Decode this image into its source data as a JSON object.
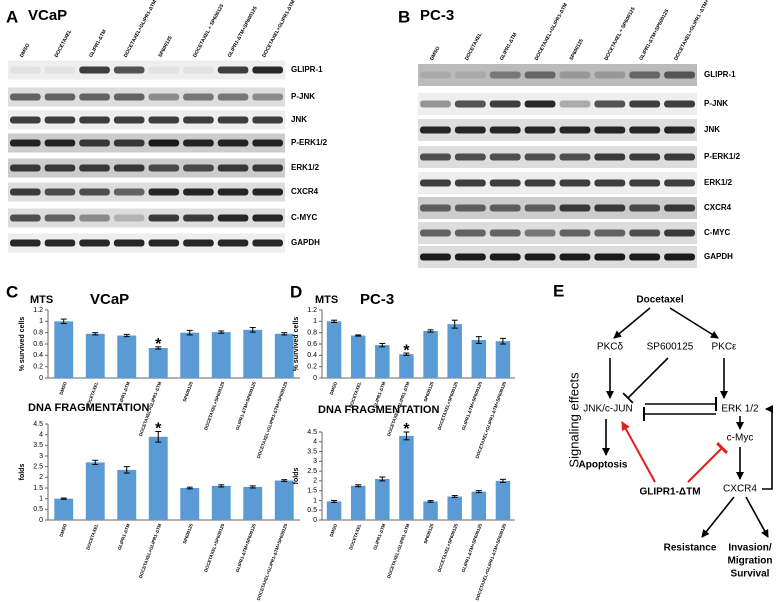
{
  "panels": [
    {
      "label": "A",
      "title": "VCaP"
    },
    {
      "label": "B",
      "title": "PC-3"
    },
    {
      "label": "C",
      "title": "VCaP"
    },
    {
      "label": "D",
      "title": "PC-3"
    },
    {
      "label": "E"
    }
  ],
  "blots": [
    {
      "lanes": [
        "DMSO",
        "DOCETAXEL",
        "GLIPR1-ΔTM",
        "DOCETAXEL+GLIPR1-ΔTM",
        "SP600125",
        "DOCETAXEL + SP600125",
        "GLIPR1-ΔTM+SP600125",
        "DOCETAXEL+GLIPR1-ΔTM+SP600125"
      ],
      "proteins": [
        "GLIPR-1",
        "P-JNK",
        "JNK",
        "P-ERK1/2",
        "ERK1/2",
        "CXCR4",
        "C-MYC",
        "GAPDH"
      ]
    },
    {
      "lanes": [
        "DMSO",
        "DOCETAXEL",
        "GLIPR1-ΔTM",
        "DOCETAXEL+GLIPR1-ΔTM",
        "SP600125",
        "DOCETAXEL + SP600125",
        "GLIPR1-ΔTM+SP600125",
        "DOCETAXEL+GLIPR1 -ΔTM+SP600125"
      ],
      "proteins": [
        "GLIPR-1",
        "P-JNK",
        "JNK",
        "P-ERK1/2",
        "ERK1/2",
        "CXCR4",
        "C-MYC",
        "GAPDH"
      ]
    }
  ],
  "chart_data": [
    {
      "type": "bar",
      "title": "MTS",
      "y_label": "% survived cells",
      "color": "#5b9bd5",
      "categories": [
        "DMSO",
        "DOCETAXEL",
        "GLIPR1-ΔTM",
        "DOCETAXEL+GLIPR1-ΔTM",
        "SP600125",
        "DOCETAXEL+SP600125",
        "GLIPR1-ΔTM+SP600125",
        "DOCETAXEL+GLIPR1-ΔTM+SP600125"
      ],
      "values": [
        1.0,
        0.78,
        0.75,
        0.53,
        0.8,
        0.81,
        0.85,
        0.78
      ],
      "errors": [
        0.04,
        0.02,
        0.02,
        0.02,
        0.04,
        0.02,
        0.04,
        0.02
      ],
      "ylim": [
        0,
        1.2
      ],
      "yticks": [
        0,
        0.2,
        0.4,
        0.6,
        0.8,
        1,
        1.2
      ],
      "annotations": [
        {
          "text": "*",
          "category": "DOCETAXEL+GLIPR1-ΔTM"
        }
      ]
    },
    {
      "type": "bar",
      "title": "DNA FRAGMENTATION",
      "y_label": "folds",
      "color": "#5b9bd5",
      "categories": [
        "DMSO",
        "DOCETAXEL",
        "GLIPR1-ΔTM",
        "DOCETAXEL+GLIPR1-ΔTM",
        "SP600125",
        "DOCETAXEL+SP600125",
        "GLIPR1-ΔTM+SP600125",
        "DOCETAXEL+GLIPR1-ΔTM+SP600125"
      ],
      "values": [
        1.0,
        2.7,
        2.35,
        3.9,
        1.5,
        1.6,
        1.55,
        1.85
      ],
      "errors": [
        0.03,
        0.1,
        0.15,
        0.25,
        0.04,
        0.05,
        0.05,
        0.04
      ],
      "ylim": [
        0,
        4.5
      ],
      "yticks": [
        0,
        0.5,
        1,
        1.5,
        2,
        2.5,
        3,
        3.5,
        4,
        4.5
      ],
      "annotations": [
        {
          "text": "*",
          "category": "DOCETAXEL+GLIPR1-ΔTM"
        }
      ]
    },
    {
      "type": "bar",
      "title": "MTS",
      "y_label": "% survived cells",
      "color": "#5b9bd5",
      "categories": [
        "DMSO",
        "DOCETAXEL",
        "GLIPR1-ΔTM",
        "DOCETAXEL+GLIPR1-ΔTM",
        "SP600125",
        "DOCETAXEL+SP600125",
        "GLIPR1-ΔTM+SP600125",
        "DOCETAXEL+GLIPR1-ΔTM+SP600125"
      ],
      "values": [
        1.0,
        0.75,
        0.58,
        0.42,
        0.83,
        0.95,
        0.67,
        0.65
      ],
      "errors": [
        0.02,
        0.01,
        0.03,
        0.02,
        0.02,
        0.07,
        0.06,
        0.05
      ],
      "ylim": [
        0,
        1.2
      ],
      "yticks": [
        0,
        0.2,
        0.4,
        0.6,
        0.8,
        1,
        1.2
      ],
      "annotations": [
        {
          "text": "*",
          "category": "DOCETAXEL+GLIPR1-ΔTM"
        }
      ]
    },
    {
      "type": "bar",
      "title": "DNA FRAGMENTATION",
      "y_label": "folds",
      "color": "#5b9bd5",
      "categories": [
        "DMSO",
        "DOCETAXEL",
        "GLIPR1-ΔTM",
        "DOCETAXEL+GLIPR1-ΔTM",
        "SP600125",
        "DOCETAXEL+SP600125",
        "GLIPR1-ΔTM+SP600125",
        "DOCETAXEL+GLIPR1-ΔTM+SP600125"
      ],
      "values": [
        0.95,
        1.75,
        2.1,
        4.3,
        0.95,
        1.2,
        1.45,
        2.0
      ],
      "errors": [
        0.05,
        0.05,
        0.1,
        0.2,
        0.04,
        0.05,
        0.05,
        0.08
      ],
      "ylim": [
        0,
        4.5
      ],
      "yticks": [
        0,
        0.5,
        1,
        1.5,
        2,
        2.5,
        3,
        3.5,
        4,
        4.5
      ],
      "annotations": [
        {
          "text": "*",
          "category": "DOCETAXEL+GLIPR1-ΔTM"
        }
      ]
    }
  ],
  "diagram": {
    "side_label": "Signaling effects",
    "nodes": [
      "Docetaxel",
      "PKCδ",
      "SP600125",
      "PKCε",
      "JNK/c-JUN",
      "ERK 1/2",
      "c-Myc",
      "Apoptosis",
      "GLIPR1-ΔTM",
      "CXCR4",
      "Resistance",
      [
        "Invasion/",
        "Migration",
        "Survival"
      ]
    ]
  }
}
